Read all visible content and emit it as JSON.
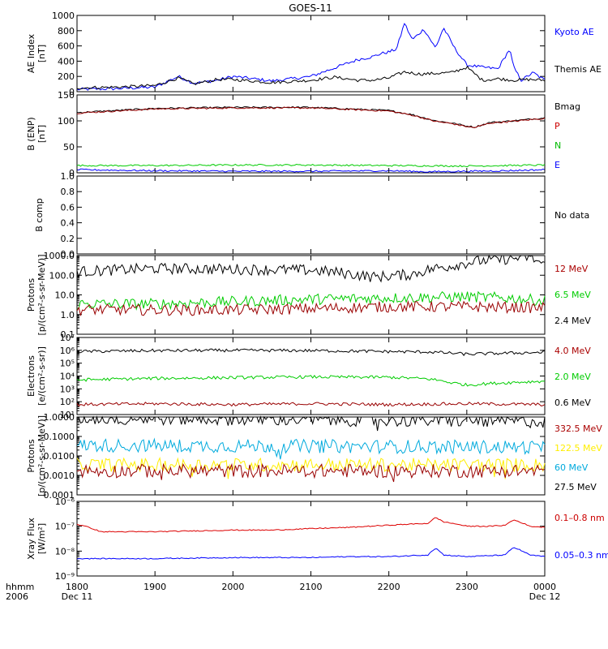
{
  "chart_data": {
    "type": "line",
    "title": "GOES-11",
    "x_ticks": [
      "1800",
      "1900",
      "2000",
      "2100",
      "2200",
      "2300",
      "0000"
    ],
    "x_range_hours": [
      18,
      24
    ],
    "x_axis_prefix": [
      "hhmm",
      "2006"
    ],
    "x_dates": [
      "Dec 11",
      "Dec 12"
    ],
    "panels": [
      {
        "id": "ae",
        "ylabel": [
          "AE Index",
          "[nT]"
        ],
        "scale": "linear",
        "ylim": [
          0,
          1000
        ],
        "yticks": [
          0,
          200,
          400,
          600,
          800,
          1000
        ],
        "legend": [
          {
            "text": "Kyoto AE",
            "color": "#0000ff"
          },
          {
            "text": "Themis AE",
            "color": "#000000"
          }
        ],
        "series": [
          {
            "name": "Kyoto AE",
            "color": "#0000ff",
            "x": [
              18.0,
              18.5,
              19.0,
              19.3,
              19.5,
              19.8,
              20.0,
              20.5,
              21.0,
              21.3,
              21.6,
              21.8,
              21.9,
              22.0,
              22.1,
              22.2,
              22.3,
              22.45,
              22.6,
              22.7,
              22.85,
              23.0,
              23.2,
              23.4,
              23.55,
              23.6,
              23.7,
              23.85,
              24.0
            ],
            "y": [
              30,
              40,
              60,
              200,
              110,
              150,
              200,
              140,
              200,
              310,
              420,
              460,
              500,
              520,
              560,
              900,
              680,
              820,
              570,
              840,
              560,
              350,
              320,
              300,
              560,
              320,
              150,
              250,
              150
            ]
          },
          {
            "name": "Themis AE",
            "color": "#000000",
            "x": [
              18.0,
              18.5,
              19.0,
              19.3,
              19.5,
              19.8,
              20.0,
              20.5,
              21.0,
              21.3,
              21.6,
              21.8,
              22.0,
              22.2,
              22.4,
              22.6,
              22.8,
              23.0,
              23.2,
              23.4,
              23.6,
              23.8,
              24.0
            ],
            "y": [
              50,
              60,
              80,
              180,
              100,
              160,
              160,
              120,
              150,
              190,
              150,
              150,
              180,
              260,
              230,
              240,
              250,
              320,
              150,
              170,
              150,
              160,
              150
            ]
          }
        ]
      },
      {
        "id": "bfield",
        "ylabel": [
          "B (ENP)",
          "[nT]"
        ],
        "scale": "linear",
        "ylim": [
          0,
          150
        ],
        "yticks": [
          0,
          50,
          100,
          150
        ],
        "legend": [
          {
            "text": "Bmag",
            "color": "#000000"
          },
          {
            "text": "P",
            "color": "#cc0000"
          },
          {
            "text": "N",
            "color": "#00bb00"
          },
          {
            "text": "E",
            "color": "#0000ff"
          }
        ],
        "series": [
          {
            "name": "Bmag",
            "color": "#000000",
            "x": [
              18.0,
              19.0,
              20.0,
              21.0,
              21.5,
              22.0,
              22.3,
              22.6,
              22.8,
              23.0,
              23.1,
              23.3,
              23.5,
              23.8,
              24.0
            ],
            "y": [
              116,
              124,
              126,
              126,
              123,
              120,
              112,
              100,
              96,
              90,
              88,
              97,
              99,
              103,
              106
            ]
          },
          {
            "name": "P",
            "color": "#990000",
            "x": [
              18.0,
              19.0,
              20.0,
              21.0,
              21.5,
              22.0,
              22.3,
              22.6,
              22.8,
              23.0,
              23.1,
              23.3,
              23.5,
              23.8,
              24.0
            ],
            "y": [
              115,
              123,
              125,
              125,
              122,
              119,
              111,
              99,
              95,
              89,
              87,
              96,
              98,
              102,
              105
            ]
          },
          {
            "name": "N",
            "color": "#00cc00",
            "x": [
              18.0,
              19.0,
              20.0,
              21.0,
              22.0,
              23.0,
              24.0
            ],
            "y": [
              14,
              14,
              15,
              15,
              14,
              13,
              15
            ]
          },
          {
            "name": "E",
            "color": "#0000ff",
            "x": [
              18.0,
              19.0,
              20.0,
              21.0,
              22.0,
              22.5,
              23.0,
              23.5,
              24.0
            ],
            "y": [
              6,
              4,
              3,
              3,
              4,
              2,
              3,
              4,
              6
            ]
          }
        ]
      },
      {
        "id": "bcomp",
        "ylabel": [
          "B comp"
        ],
        "scale": "linear",
        "ylim": [
          0,
          1
        ],
        "yticks": [
          0.0,
          0.2,
          0.4,
          0.6,
          0.8,
          1.0
        ],
        "ytick_labels": [
          "0.0",
          "0.2",
          "0.4",
          "0.6",
          "0.8",
          "1.0"
        ],
        "legend": [
          {
            "text": "No data",
            "color": "#000000"
          }
        ],
        "series": []
      },
      {
        "id": "protons_low",
        "ylabel": [
          "Protons",
          "[p/(cm²-s-sr-MeV)]"
        ],
        "scale": "log",
        "ylim": [
          0.1,
          1000
        ],
        "yticks": [
          0.1,
          1,
          10,
          100,
          1000
        ],
        "ytick_labels": [
          "0.1",
          "1.0",
          "10.0",
          "100.0",
          "1000.0"
        ],
        "legend": [
          {
            "text": "12 MeV",
            "color": "#aa0000"
          },
          {
            "text": "6.5 MeV",
            "color": "#00cc00"
          },
          {
            "text": "2.4 MeV",
            "color": "#000000"
          }
        ],
        "series": [
          {
            "name": "2.4 MeV",
            "color": "#000000",
            "x": [
              18.0,
              19.0,
              20.0,
              21.0,
              21.8,
              22.3,
              22.8,
              23.2,
              23.6,
              23.75,
              24.0
            ],
            "y": [
              150,
              220,
              200,
              180,
              80,
              110,
              300,
              550,
              700,
              900,
              300
            ]
          },
          {
            "name": "6.5 MeV",
            "color": "#00cc00",
            "x": [
              18.0,
              19.0,
              20.0,
              21.0,
              22.0,
              23.0,
              23.5,
              24.0
            ],
            "y": [
              3.5,
              3.5,
              4.5,
              6.0,
              7.0,
              8.0,
              7.0,
              5.0
            ]
          },
          {
            "name": "12 MeV",
            "color": "#990000",
            "x": [
              18.0,
              19.0,
              20.0,
              21.0,
              22.0,
              23.0,
              24.0
            ],
            "y": [
              1.8,
              1.7,
              1.7,
              2.0,
              2.5,
              2.5,
              2.2
            ]
          }
        ]
      },
      {
        "id": "electrons",
        "ylabel": [
          "Electrons",
          "[e/(cm²-s-sr)]"
        ],
        "scale": "log",
        "ylim": [
          10,
          10000000
        ],
        "yticks": [
          10,
          100,
          1000,
          10000,
          100000,
          1000000,
          10000000
        ],
        "ytick_labels": [
          "10¹",
          "10²",
          "10³",
          "10⁴",
          "10⁵",
          "10⁶",
          "10⁷"
        ],
        "legend": [
          {
            "text": "4.0 MeV",
            "color": "#aa0000"
          },
          {
            "text": "2.0 MeV",
            "color": "#00cc00"
          },
          {
            "text": "0.6 MeV",
            "color": "#000000"
          }
        ],
        "series": [
          {
            "name": "0.6 MeV",
            "color": "#000000",
            "x": [
              18.0,
              19.0,
              20.0,
              21.0,
              22.0,
              22.5,
              23.0,
              23.5,
              24.0
            ],
            "y": [
              800000,
              950000,
              1000000,
              950000,
              800000,
              750000,
              500000,
              600000,
              700000
            ]
          },
          {
            "name": "2.0 MeV",
            "color": "#00cc00",
            "x": [
              18.0,
              19.0,
              20.0,
              21.0,
              22.0,
              22.5,
              22.8,
              23.0,
              23.5,
              24.0
            ],
            "y": [
              5000,
              6500,
              7500,
              8500,
              8000,
              6000,
              3000,
              2000,
              3000,
              4000
            ]
          },
          {
            "name": "4.0 MeV",
            "color": "#990000",
            "x": [
              18.0,
              19.0,
              20.0,
              21.0,
              22.0,
              23.0,
              24.0
            ],
            "y": [
              60,
              70,
              60,
              70,
              60,
              70,
              60
            ]
          }
        ]
      },
      {
        "id": "protons_high",
        "ylabel": [
          "Protons",
          "[p/(cm²-s-sr-MeV)]"
        ],
        "scale": "log",
        "ylim": [
          0.0001,
          1
        ],
        "yticks": [
          0.0001,
          0.001,
          0.01,
          0.1,
          1
        ],
        "ytick_labels": [
          "0.0001",
          "0.0010",
          "0.0100",
          "0.1000",
          "1.0000"
        ],
        "legend": [
          {
            "text": "332.5 MeV",
            "color": "#aa0000"
          },
          {
            "text": "122.5 MeV",
            "color": "#ffee00"
          },
          {
            "text": "60 MeV",
            "color": "#00aadd"
          },
          {
            "text": "27.5 MeV",
            "color": "#000000"
          }
        ],
        "series": [
          {
            "name": "27.5 MeV",
            "color": "#000000",
            "x": [
              18.0,
              24.0
            ],
            "y": [
              0.9,
              0.6
            ]
          },
          {
            "name": "60 MeV",
            "color": "#00aadd",
            "x": [
              18.0,
              24.0
            ],
            "y": [
              0.035,
              0.028
            ]
          },
          {
            "name": "122.5 MeV",
            "color": "#ffee00",
            "x": [
              18.0,
              24.0
            ],
            "y": [
              0.0035,
              0.0035
            ]
          },
          {
            "name": "332.5 MeV",
            "color": "#990000",
            "x": [
              18.0,
              24.0
            ],
            "y": [
              0.0017,
              0.0017
            ]
          }
        ]
      },
      {
        "id": "xray",
        "ylabel": [
          "Xray Flux",
          "[W/m²]"
        ],
        "scale": "log",
        "ylim": [
          1e-09,
          1e-06
        ],
        "yticks": [
          1e-09,
          1e-08,
          1e-07,
          1e-06
        ],
        "ytick_labels": [
          "10⁻⁹",
          "10⁻⁸",
          "10⁻⁷",
          "10⁻⁶"
        ],
        "legend": [
          {
            "text": "0.1–0.8 nm",
            "color": "#cc0000"
          },
          {
            "text": "0.05–0.3 nm",
            "color": "#0000ff"
          }
        ],
        "series": [
          {
            "name": "0.1-0.8 nm",
            "color": "#dd0000",
            "x": [
              18.0,
              18.3,
              19.0,
              20.0,
              20.5,
              21.0,
              21.5,
              22.0,
              22.5,
              22.6,
              22.7,
              23.0,
              23.3,
              23.5,
              23.6,
              23.8,
              24.0
            ],
            "y": [
              1.2e-07,
              6e-08,
              6e-08,
              7e-08,
              7e-08,
              8e-08,
              9e-08,
              1.1e-07,
              1.3e-07,
              2.2e-07,
              1.5e-07,
              1e-07,
              1e-07,
              1.1e-07,
              1.8e-07,
              1e-07,
              9e-08
            ]
          },
          {
            "name": "0.05-0.3 nm",
            "color": "#0000ff",
            "x": [
              18.0,
              19.0,
              20.0,
              21.0,
              21.5,
              22.0,
              22.5,
              22.6,
              22.7,
              23.0,
              23.5,
              23.6,
              23.8,
              24.0
            ],
            "y": [
              5e-09,
              5e-09,
              5.5e-09,
              5.5e-09,
              6e-09,
              6e-09,
              7e-09,
              1.3e-08,
              7e-09,
              6e-09,
              7e-09,
              1.4e-08,
              7e-09,
              6e-09
            ]
          }
        ]
      }
    ]
  }
}
